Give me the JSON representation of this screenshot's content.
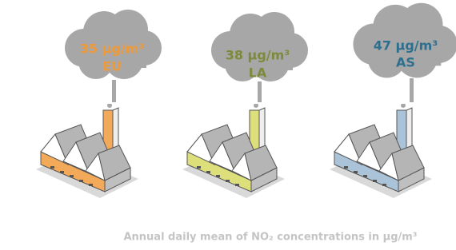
{
  "items": [
    {
      "value": "35 µg/m³",
      "region": "EU"
    },
    {
      "value": "38 µg/m³",
      "region": "LA"
    },
    {
      "value": "47 µg/m³",
      "region": "AS"
    }
  ],
  "caption": "Annual daily mean of NO₂ concentrations in µg/m³"
}
